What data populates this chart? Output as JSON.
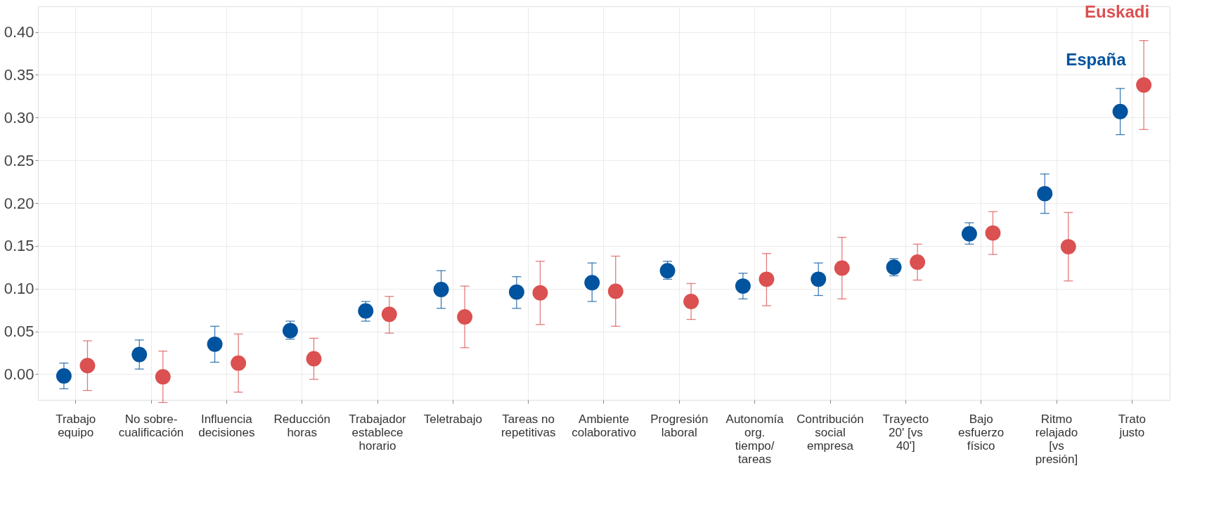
{
  "chart_data": {
    "type": "scatter",
    "categories": [
      "Trabajo\nequipo",
      "No sobre-\ncualificación",
      "Influencia\ndecisiones",
      "Reducción\nhoras",
      "Trabajador\nestablece\nhorario",
      "Teletrabajo",
      "Tareas no\nrepetitivas",
      "Ambiente\ncolaborativo",
      "Progresión\nlaboral",
      "Autonomía\norg.\ntiempo/\ntareas",
      "Contribución\nsocial\nempresa",
      "Trayecto\n20' [vs\n40']",
      "Bajo\nesfuerzo\nfísico",
      "Ritmo\nrelajado\n[vs\npresión]",
      "Trato\njusto"
    ],
    "series": [
      {
        "name": "España",
        "color": "#00539f",
        "values": [
          -0.002,
          0.023,
          0.035,
          0.051,
          0.074,
          0.099,
          0.096,
          0.107,
          0.121,
          0.103,
          0.111,
          0.125,
          0.164,
          0.211,
          0.307
        ],
        "errors": [
          [
            -0.017,
            0.013
          ],
          [
            0.006,
            0.04
          ],
          [
            0.014,
            0.056
          ],
          [
            0.041,
            0.062
          ],
          [
            0.062,
            0.085
          ],
          [
            0.077,
            0.121
          ],
          [
            0.077,
            0.114
          ],
          [
            0.085,
            0.13
          ],
          [
            0.111,
            0.132
          ],
          [
            0.088,
            0.118
          ],
          [
            0.092,
            0.13
          ],
          [
            0.115,
            0.135
          ],
          [
            0.152,
            0.177
          ],
          [
            0.188,
            0.234
          ],
          [
            0.28,
            0.334
          ]
        ]
      },
      {
        "name": "Euskadi",
        "color": "#db5050",
        "values": [
          0.01,
          -0.003,
          0.013,
          0.018,
          0.07,
          0.067,
          0.095,
          0.097,
          0.085,
          0.111,
          0.124,
          0.131,
          0.165,
          0.149,
          0.338
        ],
        "errors": [
          [
            -0.019,
            0.039
          ],
          [
            -0.033,
            0.027
          ],
          [
            -0.021,
            0.047
          ],
          [
            -0.006,
            0.042
          ],
          [
            0.048,
            0.091
          ],
          [
            0.031,
            0.103
          ],
          [
            0.058,
            0.132
          ],
          [
            0.056,
            0.138
          ],
          [
            0.064,
            0.106
          ],
          [
            0.08,
            0.141
          ],
          [
            0.088,
            0.16
          ],
          [
            0.11,
            0.152
          ],
          [
            0.14,
            0.19
          ],
          [
            0.109,
            0.189
          ],
          [
            0.286,
            0.39
          ]
        ]
      }
    ],
    "ylim": [
      -0.03,
      0.43
    ],
    "yticks": [
      {
        "value": 0,
        "label": "0.00"
      },
      {
        "value": 0.05,
        "label": "0.05"
      },
      {
        "value": 0.1,
        "label": "0.10"
      },
      {
        "value": 0.15,
        "label": "0.15"
      },
      {
        "value": 0.2,
        "label": "0.20"
      },
      {
        "value": 0.25,
        "label": "0.25"
      },
      {
        "value": 0.3,
        "label": "0.30"
      },
      {
        "value": 0.35,
        "label": "0.35"
      },
      {
        "value": 0.4,
        "label": "0.40"
      }
    ],
    "grid": true,
    "marker": "circle"
  }
}
